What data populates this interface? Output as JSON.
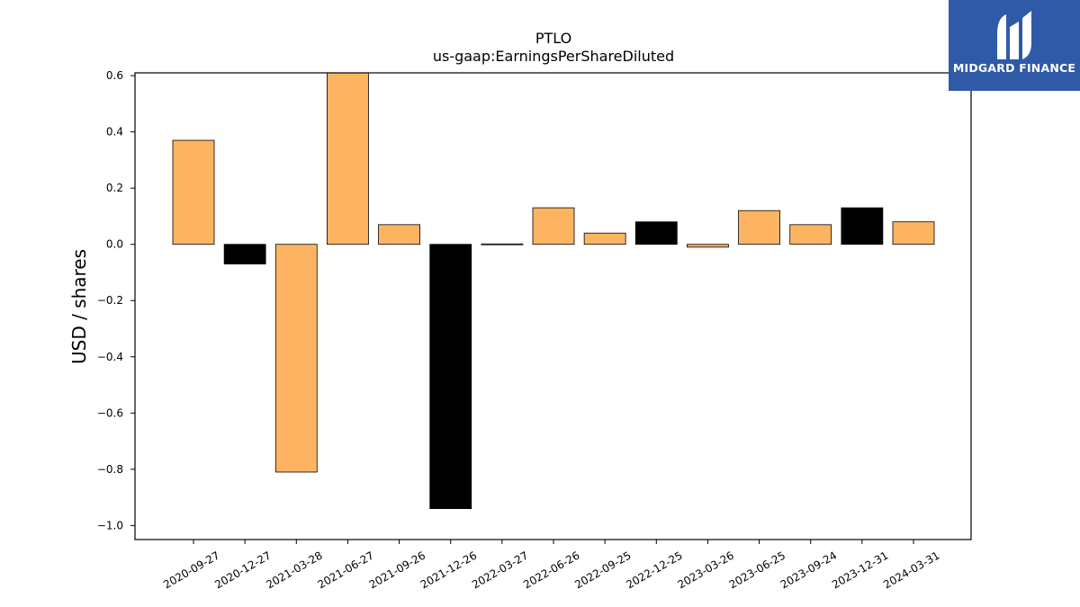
{
  "brand": {
    "name": "MIDGARD FINANCE",
    "color": "#2f5aa8"
  },
  "colors": {
    "bar_default": "#fdb462",
    "bar_highlight": "#000000"
  },
  "chart_data": {
    "type": "bar",
    "title": "PTLO",
    "subtitle": "us-gaap:EarningsPerShareDiluted",
    "xlabel": "",
    "ylabel": "USD / shares",
    "ylim": [
      -1.05,
      0.61
    ],
    "yticks": [
      -1.0,
      -0.8,
      -0.6,
      -0.4,
      -0.2,
      0.0,
      0.2,
      0.4,
      0.6
    ],
    "ytick_labels": [
      "−1.0",
      "−0.8",
      "−0.6",
      "−0.4",
      "−0.2",
      "0.0",
      "0.2",
      "0.4",
      "0.6"
    ],
    "grid": false,
    "categories": [
      "2020-09-27",
      "2020-12-27",
      "2021-03-28",
      "2021-06-27",
      "2021-09-26",
      "2021-12-26",
      "2022-03-27",
      "2022-06-26",
      "2022-09-25",
      "2022-12-25",
      "2023-03-26",
      "2023-06-25",
      "2023-09-24",
      "2023-12-31",
      "2024-03-31"
    ],
    "values": [
      0.37,
      -0.07,
      -0.81,
      0.61,
      0.07,
      -0.94,
      0.0,
      0.13,
      0.04,
      0.08,
      -0.01,
      0.12,
      0.07,
      0.13,
      0.08
    ],
    "highlight": [
      false,
      true,
      false,
      false,
      false,
      true,
      false,
      false,
      false,
      true,
      false,
      false,
      false,
      true,
      false
    ]
  }
}
